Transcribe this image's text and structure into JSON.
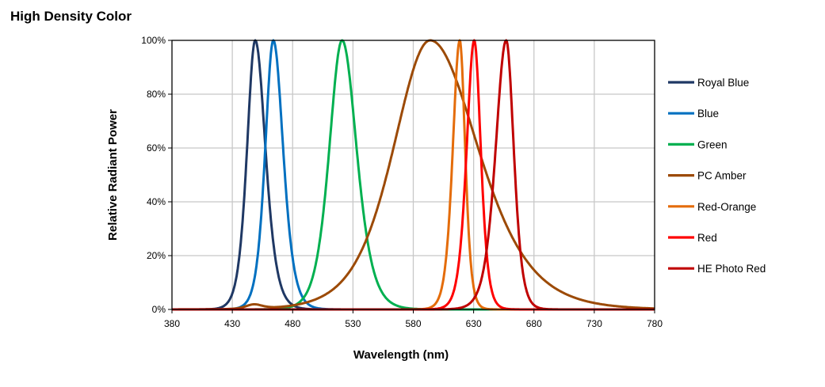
{
  "chart_data": {
    "type": "line",
    "title": "High Density Color",
    "xlabel": "Wavelength (nm)",
    "ylabel": "Relative Radiant Power",
    "xlim": [
      380,
      780
    ],
    "ylim": [
      0,
      100
    ],
    "xticks": [
      380,
      430,
      480,
      530,
      580,
      630,
      680,
      730,
      780
    ],
    "yticks": [
      0,
      20,
      40,
      60,
      80,
      100
    ],
    "ytick_labels": [
      "0%",
      "20%",
      "40%",
      "60%",
      "80%",
      "100%"
    ],
    "grid": true,
    "legend_position": "right",
    "series": [
      {
        "name": "Royal Blue",
        "color": "#1f3864",
        "peak_nm": 449,
        "half_width_left_nm": 8,
        "half_width_right_nm": 10
      },
      {
        "name": "Blue",
        "color": "#0070c0",
        "peak_nm": 464,
        "half_width_left_nm": 7.9,
        "half_width_right_nm": 9.6
      },
      {
        "name": "Green",
        "color": "#00b050",
        "peak_nm": 521,
        "half_width_left_nm": 12.5,
        "half_width_right_nm": 14.2
      },
      {
        "name": "PC Amber",
        "color": "#9c4a06",
        "peak_nm": 594,
        "half_width_left_nm": 36,
        "half_width_right_nm": 47,
        "secondary_peak_nm": 448,
        "secondary_peak_value": 1.6
      },
      {
        "name": "Red-Orange",
        "color": "#e46c0a",
        "peak_nm": 618.5,
        "half_width_left_nm": 6.8,
        "half_width_right_nm": 5.3
      },
      {
        "name": "Red",
        "color": "#ff0000",
        "peak_nm": 630.5,
        "half_width_left_nm": 7.4,
        "half_width_right_nm": 6.4
      },
      {
        "name": "HE Photo Red",
        "color": "#c00000",
        "peak_nm": 657,
        "half_width_left_nm": 10.3,
        "half_width_right_nm": 7.4
      }
    ]
  }
}
